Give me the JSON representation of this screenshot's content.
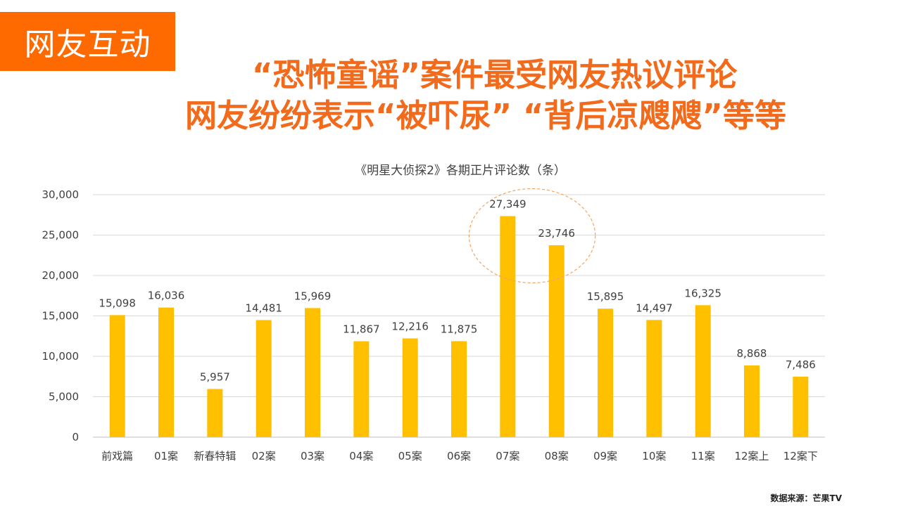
{
  "tag": "网友互动",
  "headline": {
    "line1": "“恐怖童谣”案件最受网友热议评论",
    "line2": "网友纷纷表示“被吓尿” “背后凉飕飕”等等"
  },
  "source": "数据来源：芒果TV",
  "colors": {
    "accent": "#ff6a00",
    "headline": "#f26a1b",
    "bar": "#ffc000",
    "highlight_circle": "#f4a460"
  },
  "chart_data": {
    "type": "bar",
    "title": "《明星大侦探2》各期正片评论数（条）",
    "categories": [
      "前戏篇",
      "01案",
      "新春特辑",
      "02案",
      "03案",
      "04案",
      "05案",
      "06案",
      "07案",
      "08案",
      "09案",
      "10案",
      "11案",
      "12案上",
      "12案下"
    ],
    "values": [
      15098,
      16036,
      5957,
      14481,
      15969,
      11867,
      12216,
      11875,
      27349,
      23746,
      15895,
      14497,
      16325,
      8868,
      7486
    ],
    "value_labels": [
      "15,098",
      "16,036",
      "5,957",
      "14,481",
      "15,969",
      "11,867",
      "12,216",
      "11,875",
      "27,349",
      "23,746",
      "15,895",
      "14,497",
      "16,325",
      "8,868",
      "7,486"
    ],
    "yticks": [
      "0",
      "5,000",
      "10,000",
      "15,000",
      "20,000",
      "25,000",
      "30,000"
    ],
    "ylim": [
      0,
      30000
    ],
    "grid": true,
    "highlighted_categories": [
      "07案",
      "08案"
    ]
  }
}
